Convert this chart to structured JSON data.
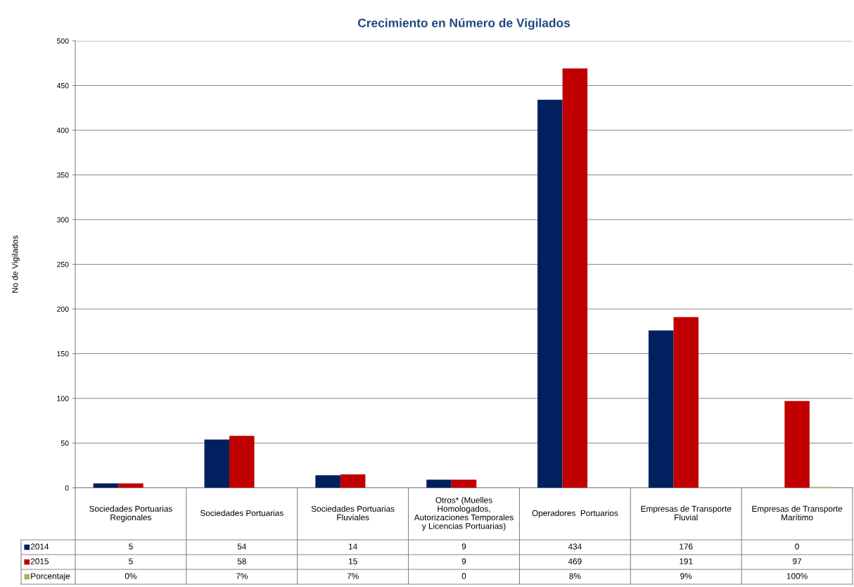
{
  "chart_data": {
    "type": "bar",
    "title": "Crecimiento en Número de Vigilados",
    "ylabel": "No de Vigilados",
    "categories": [
      "Sociedades Portuarias Regionales",
      "Sociedades Portuarias",
      "Sociedades Portuarias Fluviales",
      "Otros* (Muelles Homologados, Autorizaciones Temporales y Licencias Portuarias)",
      "Operadores  Portuarios",
      "Empresas de Transporte Fluvial",
      "Empresas de Transporte Marítimo"
    ],
    "series": [
      {
        "name": "2014",
        "color": "#002060",
        "values": [
          5,
          54,
          14,
          9,
          434,
          176,
          0
        ],
        "value_labels": [
          "5",
          "54",
          "14",
          "9",
          "434",
          "176",
          "0"
        ]
      },
      {
        "name": "2015",
        "color": "#c00000",
        "values": [
          5,
          58,
          15,
          9,
          469,
          191,
          97
        ],
        "value_labels": [
          "5",
          "58",
          "15",
          "9",
          "469",
          "191",
          "97"
        ]
      },
      {
        "name": "Porcentaje",
        "color": "#9bbb59",
        "values": [
          0,
          0.07,
          0.07,
          0,
          0.08,
          0.09,
          1
        ],
        "value_labels": [
          "0%",
          "7%",
          "7%",
          "0",
          "8%",
          "9%",
          "100%"
        ]
      }
    ],
    "ylim": [
      0,
      500
    ],
    "yticks": [
      0,
      50,
      100,
      150,
      200,
      250,
      300,
      350,
      400,
      450,
      500
    ],
    "grid": "y",
    "legend": "bottom left"
  }
}
